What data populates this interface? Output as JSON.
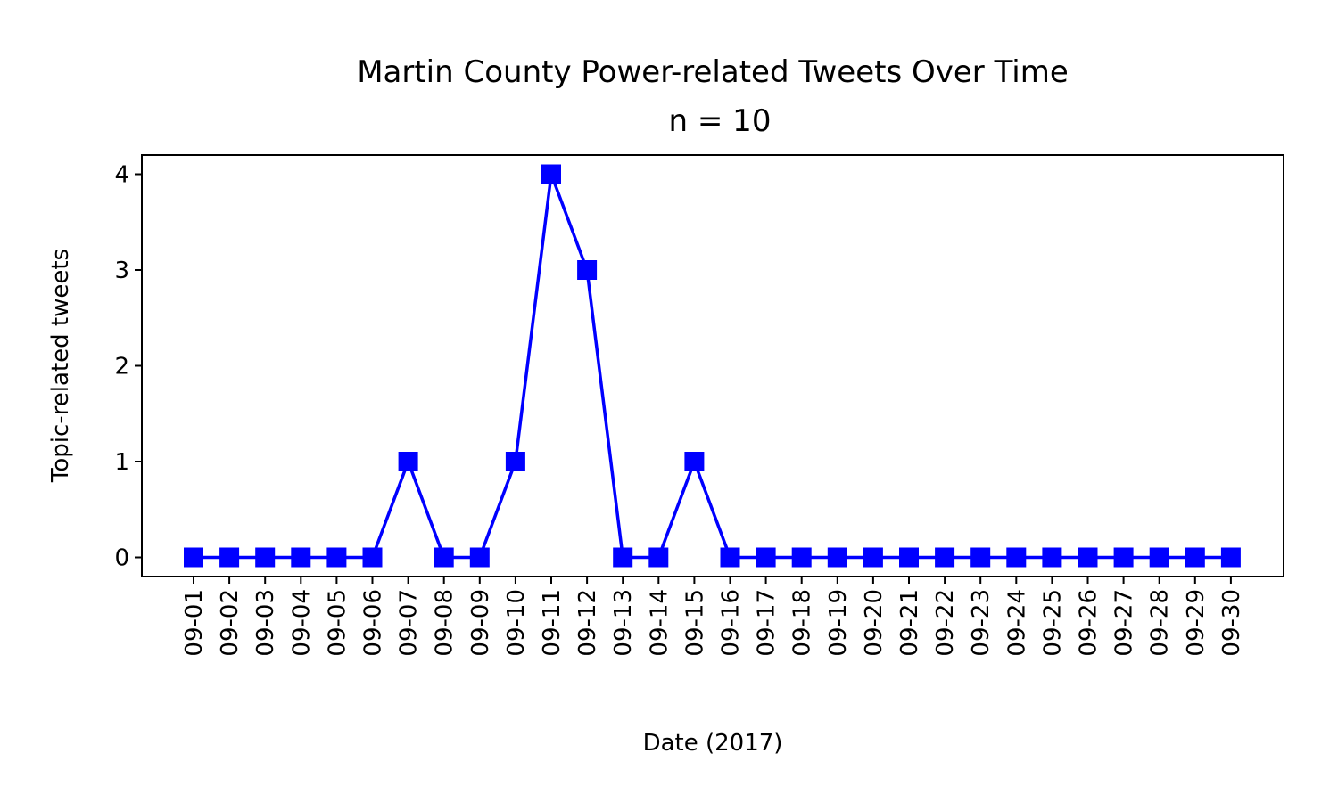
{
  "chart_data": {
    "type": "line",
    "title": "Martin County Power-related Tweets Over Time",
    "subtitle": "n = 10",
    "xlabel": "Date (2017)",
    "ylabel": "Topic-related tweets",
    "x": [
      "09-01",
      "09-02",
      "09-03",
      "09-04",
      "09-05",
      "09-06",
      "09-07",
      "09-08",
      "09-09",
      "09-10",
      "09-11",
      "09-12",
      "09-13",
      "09-14",
      "09-15",
      "09-16",
      "09-17",
      "09-18",
      "09-19",
      "09-20",
      "09-21",
      "09-22",
      "09-23",
      "09-24",
      "09-25",
      "09-26",
      "09-27",
      "09-28",
      "09-29",
      "09-30"
    ],
    "series": [
      {
        "values": [
          0,
          0,
          0,
          0,
          0,
          0,
          1,
          0,
          0,
          1,
          4,
          3,
          0,
          0,
          1,
          0,
          0,
          0,
          0,
          0,
          0,
          0,
          0,
          0,
          0,
          0,
          0,
          0,
          0,
          0
        ],
        "color": "#0000ff",
        "marker": "square"
      }
    ],
    "yticks": [
      0,
      1,
      2,
      3,
      4
    ],
    "ylim": [
      -0.2,
      4.2
    ],
    "grid": false,
    "legend": "none"
  }
}
